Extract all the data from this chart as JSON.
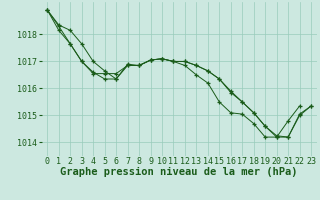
{
  "background_color": "#cce8e0",
  "grid_color": "#99ccbb",
  "line_color": "#1a5c1a",
  "xlabel": "Graphe pression niveau de la mer (hPa)",
  "xlabel_fontsize": 7.5,
  "tick_fontsize": 6.0,
  "ylim": [
    1013.5,
    1019.2
  ],
  "xlim": [
    -0.5,
    23.5
  ],
  "yticks": [
    1014,
    1015,
    1016,
    1017,
    1018
  ],
  "xticks": [
    0,
    1,
    2,
    3,
    4,
    5,
    6,
    7,
    8,
    9,
    10,
    11,
    12,
    13,
    14,
    15,
    16,
    17,
    18,
    19,
    20,
    21,
    22,
    23
  ],
  "series": [
    {
      "x": [
        0,
        1,
        2,
        3,
        4,
        5,
        6,
        7,
        8,
        9,
        10,
        11,
        12,
        13,
        14,
        15,
        16,
        17,
        18,
        19,
        20,
        21,
        22,
        23
      ],
      "y": [
        1018.9,
        1018.3,
        1017.65,
        1017.0,
        1016.55,
        1016.55,
        1016.55,
        1016.85,
        1016.85,
        1017.05,
        1017.1,
        1017.0,
        1017.0,
        1016.85,
        1016.65,
        1016.35,
        1015.9,
        1015.5,
        1015.1,
        1014.6,
        1014.2,
        1014.2,
        1015.05,
        1015.35
      ]
    },
    {
      "x": [
        0,
        1,
        2,
        3,
        4,
        5,
        6,
        7,
        8,
        9,
        10,
        11,
        12,
        13,
        14,
        15,
        16,
        17,
        18,
        19,
        20,
        21,
        22
      ],
      "y": [
        1018.9,
        1018.15,
        1017.65,
        1017.0,
        1016.6,
        1016.35,
        1016.35,
        1016.85,
        1016.85,
        1017.05,
        1017.1,
        1017.0,
        1016.85,
        1016.5,
        1016.2,
        1015.5,
        1015.1,
        1015.05,
        1014.7,
        1014.2,
        1014.2,
        1014.8,
        1015.35
      ]
    },
    {
      "x": [
        0,
        1,
        2,
        3,
        4,
        5,
        6,
        7,
        8,
        9,
        10,
        11,
        12,
        13,
        14,
        15,
        16,
        17,
        18,
        19,
        20,
        21,
        22,
        23
      ],
      "y": [
        1018.9,
        1018.35,
        1018.15,
        1017.65,
        1017.0,
        1016.65,
        1016.35,
        1016.9,
        1016.85,
        1017.05,
        1017.1,
        1017.0,
        1017.0,
        1016.85,
        1016.65,
        1016.35,
        1015.85,
        1015.5,
        1015.1,
        1014.6,
        1014.25,
        1014.2,
        1015.0,
        1015.35
      ]
    }
  ]
}
